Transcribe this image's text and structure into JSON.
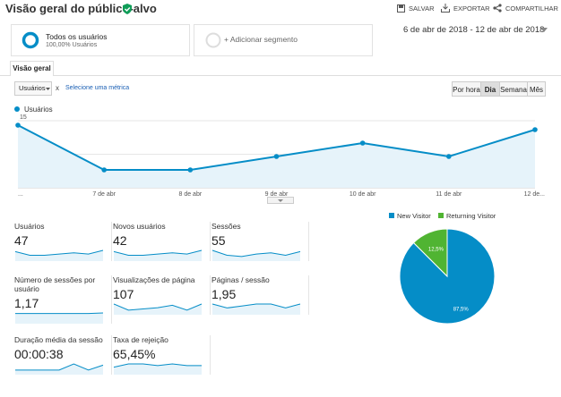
{
  "header": {
    "title": "Visão geral do público-alvo",
    "actions": [
      "SALVAR",
      "EXPORTAR",
      "COMPARTILHAR"
    ]
  },
  "segments": [
    {
      "name": "Todos os usuários",
      "detail": "100,00% Usuários"
    },
    {
      "name": "+ Adicionar segmento"
    }
  ],
  "date_range": "6 de abr de 2018 - 12 de abr de 2018",
  "tab": "Visão geral",
  "controls": {
    "metric": "Usuários",
    "remove": "x",
    "add_metric": "Selecione uma métrica",
    "granularity": [
      "Por hora",
      "Dia",
      "Semana",
      "Mês"
    ],
    "selected": 1
  },
  "chart_data": [
    {
      "type": "line",
      "categories": [
        "...",
        "7 de abr",
        "8 de abr",
        "9 de abr",
        "10 de abr",
        "11 de abr",
        "12 de..."
      ],
      "series": [
        {
          "name": "Usuários",
          "color": "#058dc7",
          "values": [
            14,
            4,
            4,
            7,
            10,
            7,
            13
          ]
        }
      ],
      "ylim": [
        0,
        16
      ],
      "yticks": [
        7.5,
        15
      ],
      "grid": true
    },
    {
      "type": "pie",
      "categories": [
        "New Visitor",
        "Returning Visitor"
      ],
      "values": [
        87.5,
        12.5
      ],
      "value_labels": [
        "87,5%",
        "12,5%"
      ],
      "colors": [
        "#058dc7",
        "#50b432"
      ]
    }
  ],
  "metrics": [
    {
      "label": "Usuários",
      "value": "47",
      "sparkline": [
        7,
        4,
        4,
        5,
        6,
        5,
        8
      ]
    },
    {
      "label": "Novos usuários",
      "value": "42",
      "sparkline": [
        7,
        4,
        4,
        5,
        6,
        5,
        8
      ]
    },
    {
      "label": "Sessões",
      "value": "55",
      "sparkline": [
        8,
        4,
        3,
        5,
        6,
        4,
        7
      ]
    },
    {
      "label": "Número de sessões por usuário",
      "value": "1,17",
      "sparkline": [
        5,
        5,
        5,
        5,
        5,
        5,
        5.3
      ]
    },
    {
      "label": "Visualizações de página",
      "value": "107",
      "sparkline": [
        8,
        3,
        4,
        5,
        7,
        3,
        8
      ]
    },
    {
      "label": "Páginas / sessão",
      "value": "1,95",
      "sparkline": [
        5,
        3,
        4,
        5,
        5,
        3,
        5
      ]
    },
    {
      "label": "Duração média da sessão",
      "value": "00:00:38",
      "sparkline": [
        3,
        3,
        3,
        3,
        8,
        3,
        7
      ]
    },
    {
      "label": "Taxa de rejeição",
      "value": "65,45%",
      "sparkline": [
        4,
        6,
        6,
        5,
        6,
        5,
        5
      ]
    }
  ]
}
